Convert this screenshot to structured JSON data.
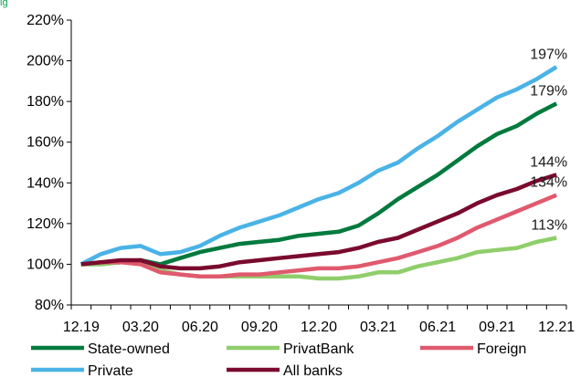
{
  "header": {
    "cropped_caption": "ig"
  },
  "chart_data": {
    "type": "line",
    "x": [
      "12.19",
      "01.20",
      "02.20",
      "03.20",
      "04.20",
      "05.20",
      "06.20",
      "07.20",
      "08.20",
      "09.20",
      "10.20",
      "11.20",
      "12.20",
      "01.21",
      "02.21",
      "03.21",
      "04.21",
      "05.21",
      "06.21",
      "07.21",
      "08.21",
      "09.21",
      "10.21",
      "11.21",
      "12.21"
    ],
    "x_tick_labels": [
      "12.19",
      "03.20",
      "06.20",
      "09.20",
      "12.20",
      "03.21",
      "06.21",
      "09.21",
      "12.21"
    ],
    "ylim": [
      80,
      220
    ],
    "y_ticks": [
      80,
      100,
      120,
      140,
      160,
      180,
      200,
      220
    ],
    "y_tick_labels": [
      "80%",
      "100%",
      "120%",
      "140%",
      "160%",
      "180%",
      "200%",
      "220%"
    ],
    "grid": false,
    "legend_position": "bottom",
    "series": [
      {
        "name": "State-owned",
        "color": "#007a3d",
        "values": [
          100,
          100,
          101,
          102,
          100,
          103,
          106,
          108,
          110,
          111,
          112,
          114,
          115,
          116,
          119,
          125,
          132,
          138,
          144,
          151,
          158,
          164,
          168,
          174,
          179
        ]
      },
      {
        "name": "PrivatBank",
        "color": "#8fce6b",
        "values": [
          100,
          100,
          101,
          101,
          97,
          95,
          94,
          94,
          94,
          94,
          94,
          94,
          93,
          93,
          94,
          96,
          96,
          99,
          101,
          103,
          106,
          107,
          108,
          111,
          113
        ]
      },
      {
        "name": "Foreign",
        "color": "#e05a6e",
        "values": [
          100,
          101,
          101,
          100,
          96,
          95,
          94,
          94,
          95,
          95,
          96,
          97,
          98,
          98,
          99,
          101,
          103,
          106,
          109,
          113,
          118,
          122,
          126,
          130,
          134
        ]
      },
      {
        "name": "Private",
        "color": "#4ab3e6",
        "values": [
          100,
          105,
          108,
          109,
          105,
          106,
          109,
          114,
          118,
          121,
          124,
          128,
          132,
          135,
          140,
          146,
          150,
          157,
          163,
          170,
          176,
          182,
          186,
          191,
          197
        ]
      },
      {
        "name": "All banks",
        "color": "#7a0a2e",
        "values": [
          100,
          101,
          102,
          102,
          99,
          98,
          98,
          99,
          101,
          102,
          103,
          104,
          105,
          106,
          108,
          111,
          113,
          117,
          121,
          125,
          130,
          134,
          137,
          141,
          144
        ]
      }
    ],
    "end_labels": [
      {
        "text": "197%",
        "series": "Private"
      },
      {
        "text": "179%",
        "series": "State-owned"
      },
      {
        "text": "144%",
        "series": "All banks"
      },
      {
        "text": "134%",
        "series": "Foreign"
      },
      {
        "text": "113%",
        "series": "PrivatBank"
      }
    ]
  }
}
